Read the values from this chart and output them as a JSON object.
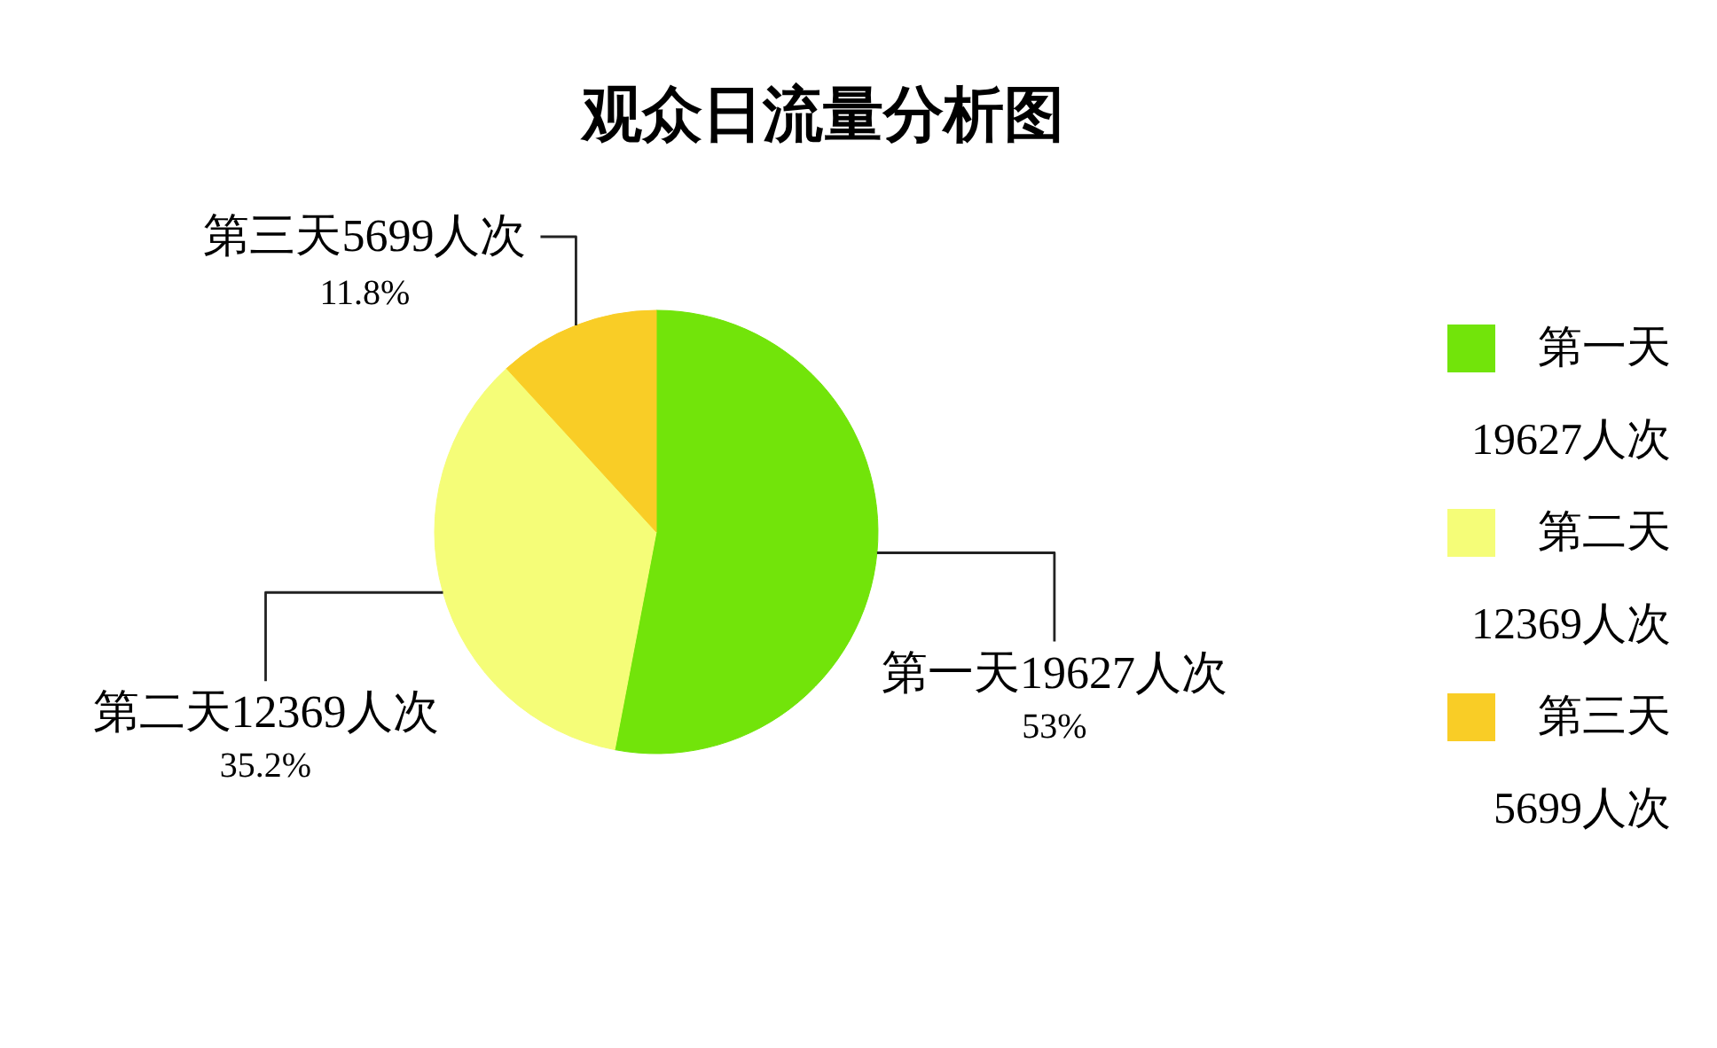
{
  "chart_data": {
    "type": "pie",
    "title": "观众日流量分析图",
    "categories": [
      "第一天19627人次",
      "第二天12369人次",
      "第三天5699人次"
    ],
    "values": [
      53,
      35.2,
      11.8
    ],
    "colors": [
      "#72e40a",
      "#f5fd78",
      "#f9cd26"
    ],
    "value_labels": [
      "53%",
      "35.2%",
      "11.8%"
    ],
    "legend": "right"
  }
}
